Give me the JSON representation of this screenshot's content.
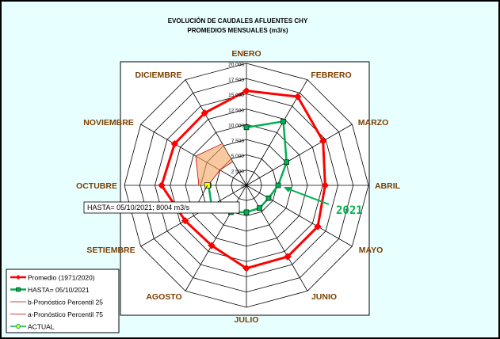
{
  "chart_data": {
    "type": "radar",
    "title": "EVOLUCIÓN DE CAUDALES AFLUENTES CHY",
    "subtitle": "PROMEDIOS MENSUALES (m3/s)",
    "categories": [
      "ENERO",
      "FEBRERO",
      "MARZO",
      "ABRIL",
      "MAYO",
      "JUNIO",
      "JULIO",
      "AGOSTO",
      "SETIEMBRE",
      "OCTUBRE",
      "NOVIEMBRE",
      "DICIEMBRE"
    ],
    "rlim": [
      0,
      20000
    ],
    "rticks": [
      0,
      {
        "value": 2500,
        "label": "2 500"
      },
      {
        "value": 5000,
        "label": "5 000"
      },
      {
        "value": 7500,
        "label": "7 500"
      },
      {
        "value": 10000,
        "label": "10 000"
      },
      {
        "value": 12500,
        "label": "12 500"
      },
      {
        "value": 15000,
        "label": "15 000"
      },
      {
        "value": 17500,
        "label": "17 500"
      },
      {
        "value": 20000,
        "label": "20 000"
      }
    ],
    "series": [
      {
        "name": "Promedio (1971/2020)",
        "color": "#ff0000",
        "values": [
          15500,
          16800,
          14500,
          12900,
          13500,
          13500,
          13600,
          11400,
          11600,
          13900,
          13600,
          13700
        ]
      },
      {
        "name": "HASTA= 05/10/2021",
        "color": "#00b050",
        "values": [
          9500,
          12100,
          7600,
          5200,
          4200,
          4300,
          4400,
          5100,
          6600,
          6200,
          null,
          null
        ]
      },
      {
        "name": "b-Pronóstico Percentil 25",
        "color": "#c00000",
        "values": [
          null,
          null,
          null,
          null,
          null,
          null,
          null,
          null,
          null,
          6300,
          5000,
          4500
        ]
      },
      {
        "name": "a-Pronóstico Percentil 75",
        "color": "#c00000",
        "values": [
          null,
          null,
          null,
          null,
          null,
          null,
          null,
          null,
          null,
          7800,
          9600,
          7900
        ]
      },
      {
        "name": "ACTUAL",
        "color": "#00b050",
        "marker_color": "#ffff00",
        "values": [
          null,
          null,
          null,
          null,
          null,
          null,
          null,
          null,
          null,
          6400,
          null,
          null
        ]
      }
    ],
    "band_color": "#f4a460",
    "annotations": [
      "HASTA= 05/10/2021; 8004 m3/s",
      "2021"
    ]
  }
}
